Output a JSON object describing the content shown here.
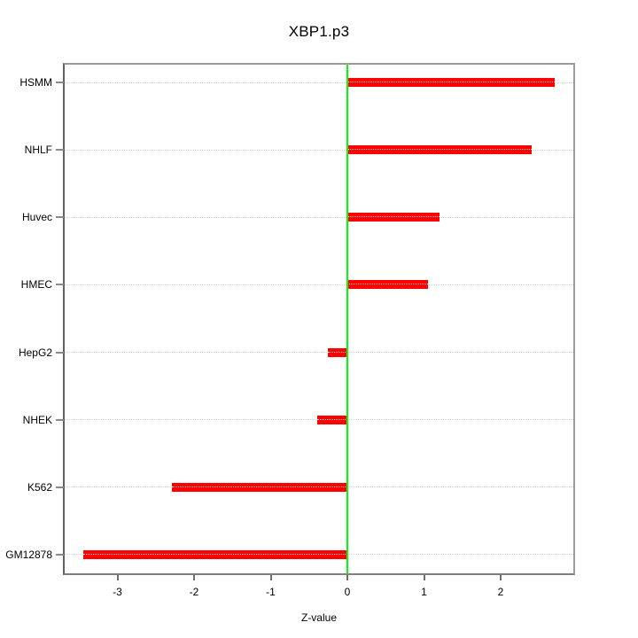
{
  "chart_data": {
    "type": "bar",
    "orientation": "horizontal",
    "title": "XBP1.p3",
    "xlabel": "Z-value",
    "ylabel": "",
    "categories": [
      "HSMM",
      "NHLF",
      "Huvec",
      "HMEC",
      "HepG2",
      "NHEK",
      "K562",
      "GM12878"
    ],
    "values": [
      2.71,
      2.4,
      1.2,
      1.05,
      -0.26,
      -0.39,
      -2.29,
      -3.45
    ],
    "x_ticks": [
      -3,
      -2,
      -1,
      0,
      1,
      2
    ],
    "xlim": [
      -3.7,
      2.95
    ],
    "zero_reference_line": 0,
    "grid": "horizontal-dotted",
    "legend": "none"
  },
  "colors": {
    "bar": "#ff0000",
    "zero_line": "#00ff00",
    "grid": "#d3d3d3",
    "box_border": "#8f8f8f",
    "text": "#000000",
    "background": "#ffffff"
  }
}
